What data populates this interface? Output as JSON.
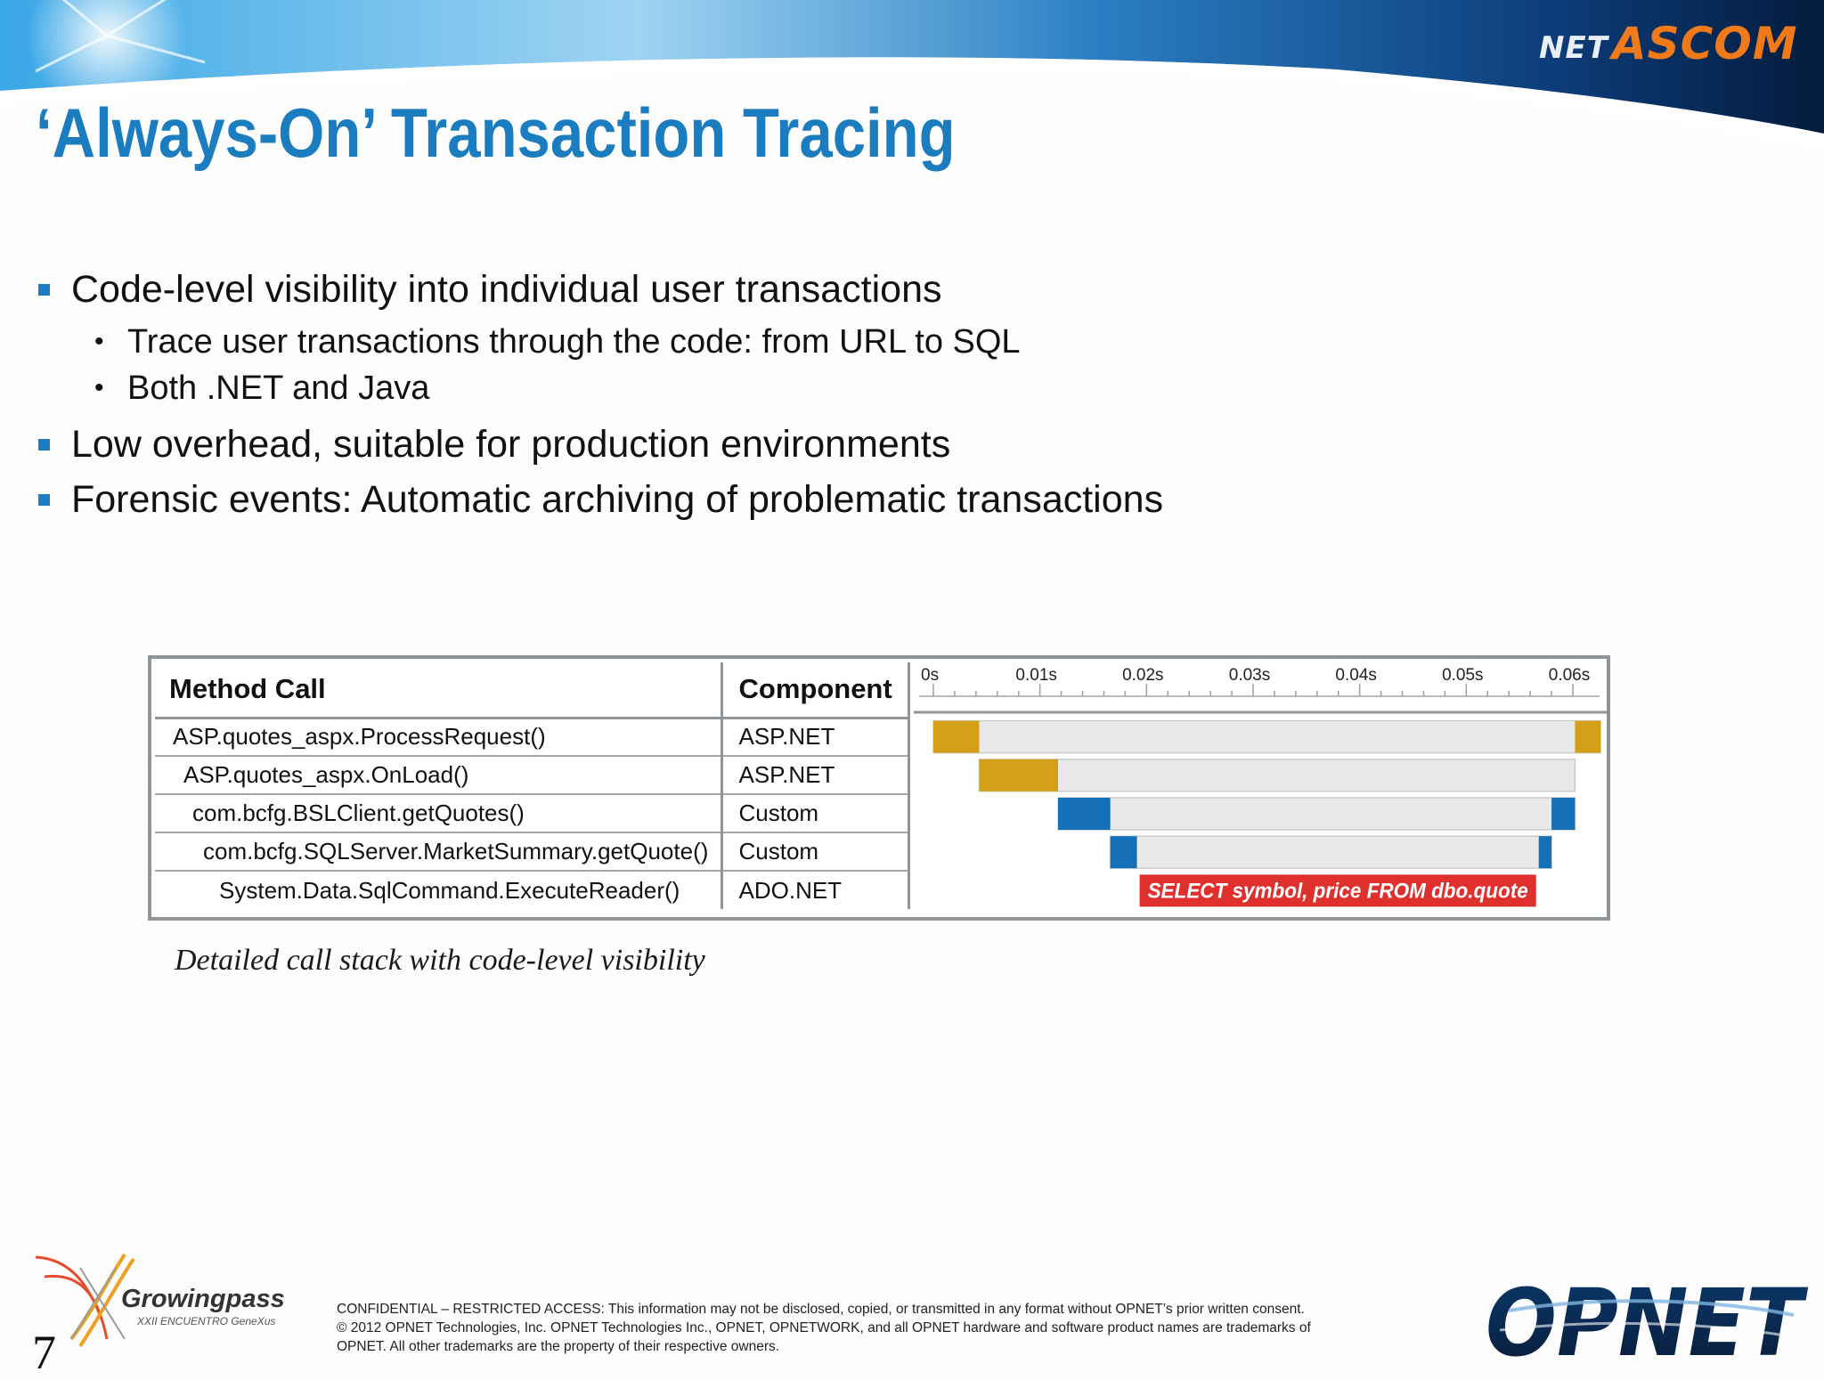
{
  "header": {
    "brand_net": "NET",
    "brand_ascom": "ASCOM",
    "title": "‘Always-On’ Transaction Tracing"
  },
  "bullets": [
    {
      "text": "Code-level visibility into individual user transactions",
      "sub": [
        "Trace user transactions through the code: from URL to SQL",
        "Both .NET and Java"
      ]
    },
    {
      "text": "Low overhead, suitable for production environments",
      "sub": []
    },
    {
      "text": "Forensic events: Automatic archiving of problematic transactions",
      "sub": []
    }
  ],
  "trace_table": {
    "headers": {
      "method": "Method Call",
      "component": "Component"
    },
    "ticks": [
      "0s",
      "0.01s",
      "0.02s",
      "0.03s",
      "0.04s",
      "0.05s",
      "0.06s"
    ],
    "rows": [
      {
        "method": "ASP.quotes_aspx.ProcessRequest()",
        "component": "ASP.NET",
        "indent": 0
      },
      {
        "method": "ASP.quotes_aspx.OnLoad()",
        "component": "ASP.NET",
        "indent": 1
      },
      {
        "method": "com.bcfg.BSLClient.getQuotes()",
        "component": "Custom",
        "indent": 2
      },
      {
        "method": "com.bcfg.SQLServer.MarketSummary.getQuote()",
        "component": "Custom",
        "indent": 3
      },
      {
        "method": "System.Data.SqlCommand.ExecuteReader()",
        "component": "ADO.NET",
        "indent": 4
      }
    ],
    "bars": [
      {
        "start": 0.0,
        "end": 0.0626,
        "self_start": 0.0043,
        "self_end": 0.0602,
        "color": "#d4a017"
      },
      {
        "start": 0.0043,
        "end": 0.0602,
        "self_start": 0.0117,
        "self_end": 0.0602,
        "color": "#d4a017"
      },
      {
        "start": 0.0117,
        "end": 0.0602,
        "self_start": 0.0166,
        "self_end": 0.058,
        "color": "#1570b8"
      },
      {
        "start": 0.0166,
        "end": 0.058,
        "self_start": 0.0191,
        "self_end": 0.0568,
        "color": "#1570b8"
      }
    ],
    "sql_bar": {
      "start": 0.0191,
      "end": 0.0568,
      "label": "SELECT symbol, price FROM dbo.quote",
      "color": "#e0302e"
    },
    "time_max": 0.0626
  },
  "caption": "Detailed call stack with code-level visibility",
  "branding": {
    "growingpass": "Growingpass",
    "growingpass_sub": "XXII ENCUENTRO GeneXus",
    "opnet": "OPNET"
  },
  "page_number": "7",
  "footer_lines": [
    "CONFIDENTIAL – RESTRICTED ACCESS: This information may not be disclosed, copied, or transmitted in any format without OPNET’s prior written consent.",
    "© 2012 OPNET Technologies, Inc.  OPNET Technologies Inc., OPNET, OPNETWORK, and all OPNET hardware and software product names are trademarks of",
    "OPNET.  All other trademarks are the property of their respective owners."
  ]
}
